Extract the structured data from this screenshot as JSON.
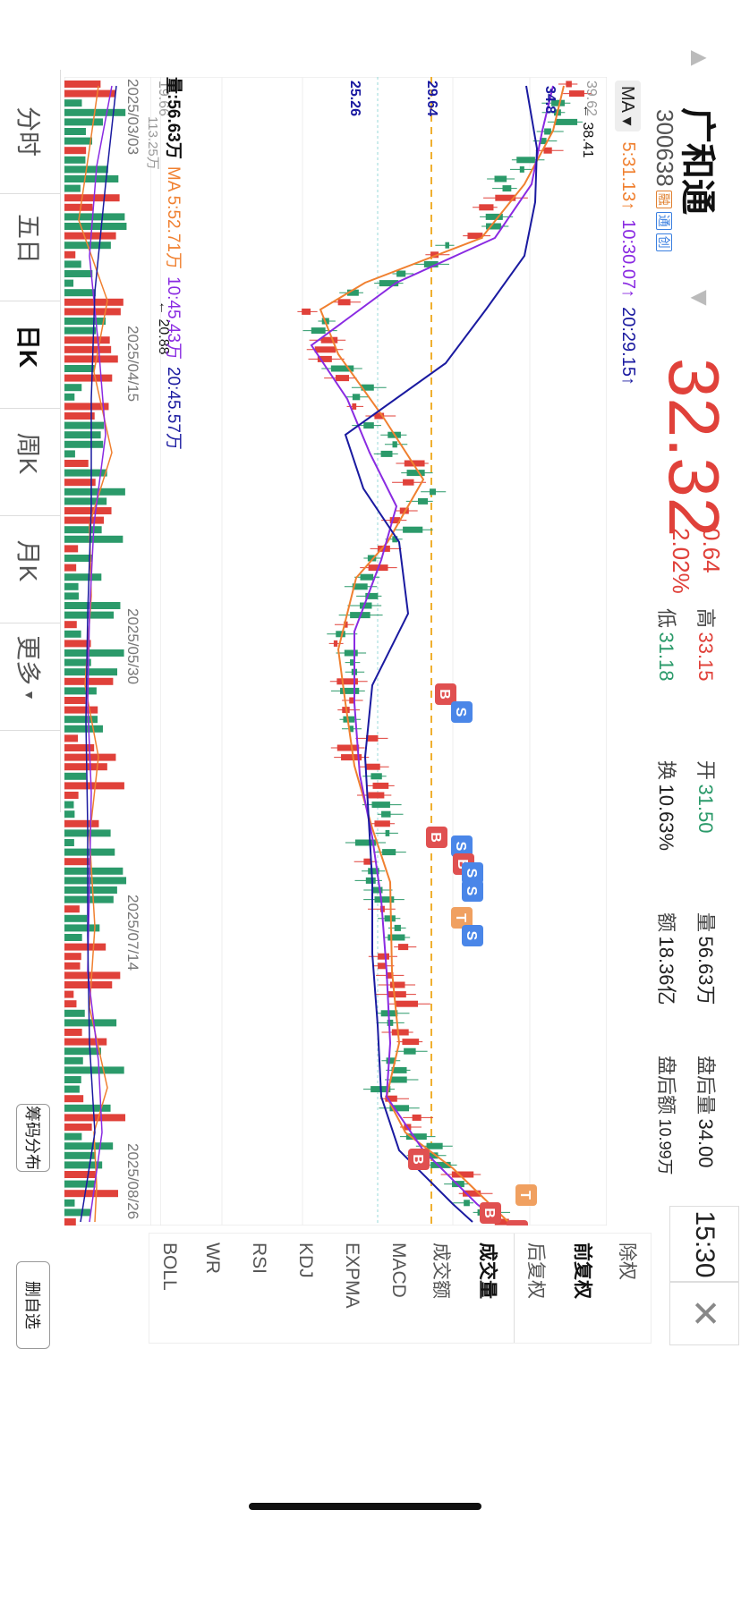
{
  "stock": {
    "name": "广和通",
    "code": "300638",
    "badges": [
      "融",
      "通",
      "创"
    ],
    "price": "32.32",
    "change": "0.64",
    "change_pct": "2.02%"
  },
  "stats": {
    "high_label": "高",
    "high": "33.15",
    "low_label": "低",
    "low": "31.18",
    "open_label": "开",
    "open": "31.50",
    "turnover_label": "换",
    "turnover": "10.63%",
    "volume_label": "量",
    "volume": "56.63万",
    "amount_label": "额",
    "amount": "18.36亿",
    "after_vol_label": "盘后量",
    "after_vol": "34.00",
    "after_amt_label": "盘后额",
    "after_amt": "10.99万"
  },
  "time": "15:30",
  "ma_line": {
    "label": "MA",
    "ma5": "5:31.13",
    "ma10": "10:30.07",
    "ma20": "20:29.15",
    "arrow": "↑"
  },
  "chart_labels": {
    "price_top": "39.62",
    "price_bottom": "19.66",
    "high_mark": "38.41",
    "low_mark": "20.88",
    "level_1": "29.64",
    "level_2": "25.26",
    "level_3": "34.8",
    "vol_axis": "113.25万",
    "dates": [
      "2025/03/03",
      "2025/04/15",
      "2025/05/30",
      "2025/07/14",
      "2025/08/26"
    ]
  },
  "volume_line": {
    "label": "量:56.63万",
    "ma5": "MA 5:52.71万",
    "ma10": "10:45.43万",
    "ma20": "20:45.57万"
  },
  "bottom_tabs": [
    "分时",
    "五日",
    "日K",
    "周K",
    "月K",
    "更多"
  ],
  "buttons": {
    "chip": "筹码分布",
    "delete": "删自选"
  },
  "right_tabs": [
    "除权",
    "前复权",
    "后复权",
    "成交量",
    "成交额",
    "MACD",
    "EXPMA",
    "KDJ",
    "RSI",
    "WR",
    "BOLL"
  ],
  "trade_marks": [
    "B",
    "S",
    "B",
    "S",
    "B",
    "S",
    "S",
    "T",
    "S",
    "B",
    "B",
    "T",
    "B"
  ],
  "colors": {
    "up": "#e0413a",
    "down": "#2b9a6a",
    "ma5": "#f08030",
    "ma10": "#8a2be2",
    "ma20": "#1a1aa0",
    "guide": "#f0b030"
  }
}
